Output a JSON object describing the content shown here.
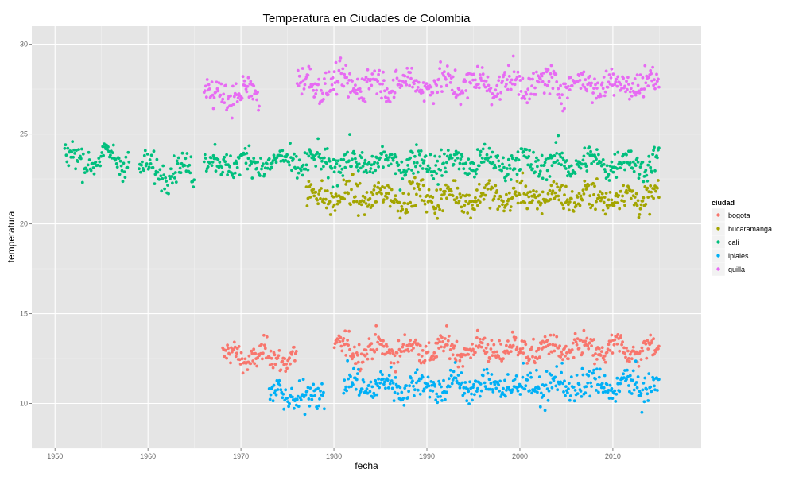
{
  "chart_data": {
    "type": "scatter",
    "title": "Temperatura en Ciudades de Colombia",
    "xlabel": "fecha",
    "ylabel": "temperatura",
    "xlim": [
      1947.5,
      2019.5
    ],
    "ylim": [
      7.5,
      31
    ],
    "xticks": [
      1950,
      1960,
      1970,
      1980,
      1990,
      2000,
      2010
    ],
    "yticks": [
      10,
      15,
      20,
      25,
      30
    ],
    "grid": true,
    "legend": {
      "title": "ciudad",
      "position": "right"
    },
    "series": [
      {
        "name": "bogota",
        "color": "#F8766D",
        "segments": [
          [
            1968,
            1976,
            12.6,
            0.5
          ],
          [
            1980,
            2015,
            13.0,
            0.5
          ]
        ]
      },
      {
        "name": "bucaramanga",
        "color": "#A3A500",
        "segments": [
          [
            1977,
            2015,
            21.5,
            0.55
          ]
        ]
      },
      {
        "name": "cali",
        "color": "#00BF7D",
        "segments": [
          [
            1951,
            1958,
            23.6,
            0.55
          ],
          [
            1959,
            1965,
            23.0,
            0.55
          ],
          [
            1966,
            2015,
            23.4,
            0.55
          ]
        ]
      },
      {
        "name": "ipiales",
        "color": "#00B0F6",
        "segments": [
          [
            1973,
            1979,
            10.4,
            0.6
          ],
          [
            1981,
            2015,
            11.0,
            0.6
          ]
        ]
      },
      {
        "name": "quilla",
        "color": "#E76BF3",
        "segments": [
          [
            1966,
            1972,
            27.2,
            0.6
          ],
          [
            1976,
            2015,
            27.8,
            0.6
          ]
        ]
      }
    ]
  }
}
